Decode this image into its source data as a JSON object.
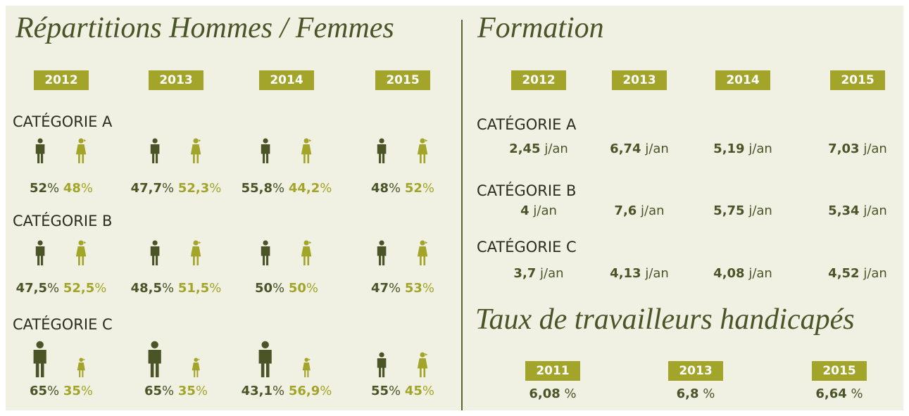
{
  "gender": {
    "title": "Répartitions Hommes / Femmes",
    "years": [
      "2012",
      "2013",
      "2014",
      "2015"
    ],
    "unit": "%",
    "categories": [
      {
        "label": "CATÉGORIE A",
        "values": [
          {
            "men": "52",
            "women": "48"
          },
          {
            "men": "47,7",
            "women": "52,3"
          },
          {
            "men": "55,8",
            "women": "44,2"
          },
          {
            "men": "48",
            "women": "52"
          }
        ]
      },
      {
        "label": "CATÉGORIE B",
        "values": [
          {
            "men": "47,5",
            "women": "52,5"
          },
          {
            "men": "48,5",
            "women": "51,5"
          },
          {
            "men": "50",
            "women": "50"
          },
          {
            "men": "47",
            "women": "53"
          }
        ]
      },
      {
        "label": "CATÉGORIE C",
        "values": [
          {
            "men": "65",
            "women": "35"
          },
          {
            "men": "65",
            "women": "35"
          },
          {
            "men": "43,1",
            "women": "56,9"
          },
          {
            "men": "55",
            "women": "45"
          }
        ]
      }
    ]
  },
  "training": {
    "title": "Formation",
    "years": [
      "2012",
      "2013",
      "2014",
      "2015"
    ],
    "unit": "j/an",
    "categories": [
      {
        "label": "CATÉGORIE A",
        "values": [
          "2,45",
          "6,74",
          "5,19",
          "7,03"
        ]
      },
      {
        "label": "CATÉGORIE B",
        "values": [
          "4",
          "7,6",
          "5,75",
          "5,34"
        ]
      },
      {
        "label": "CATÉGORIE C",
        "values": [
          "3,7",
          "4,13",
          "4,08",
          "4,52"
        ]
      }
    ]
  },
  "disability": {
    "title": "Taux de travailleurs handicapés",
    "years": [
      "2011",
      "2013",
      "2015"
    ],
    "unit": "%",
    "values": [
      "6,08",
      "6,8",
      "6,64"
    ]
  }
}
